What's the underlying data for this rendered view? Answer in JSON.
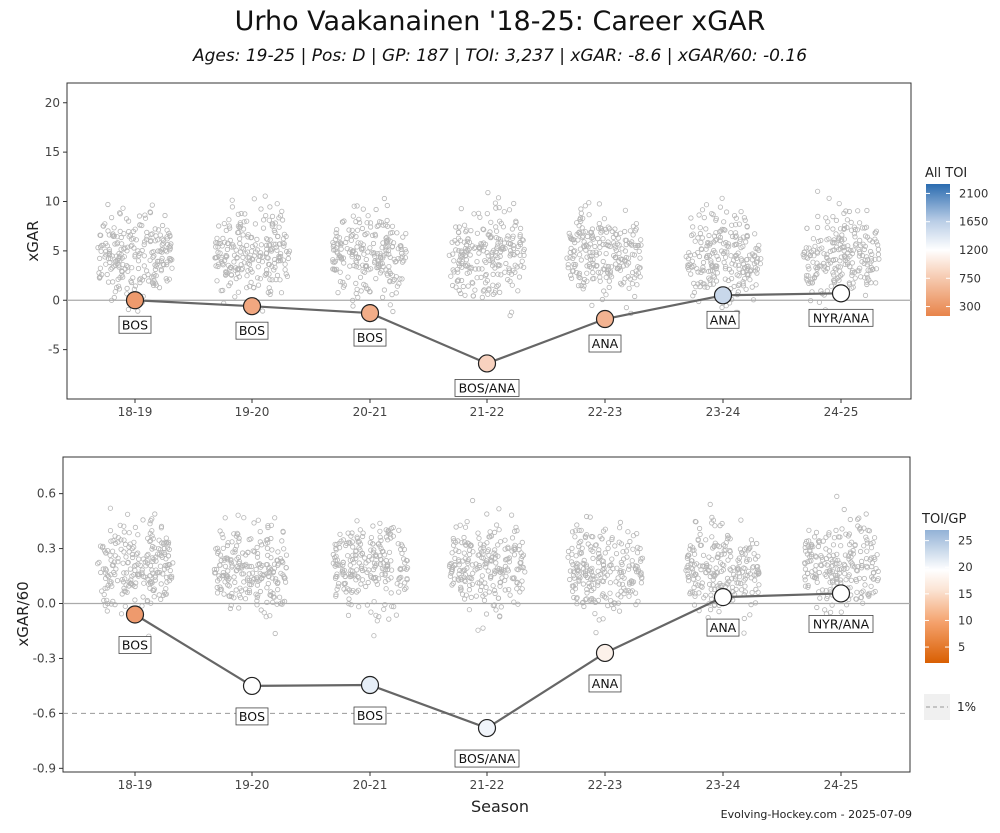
{
  "title": "Urho Vaakanainen '18-25: Career xGAR",
  "subtitle": "Ages: 19-25 | Pos: D | GP: 187 | TOI: 3,237 | xGAR: -8.6 | xGAR/60: -0.16",
  "caption": "Evolving-Hockey.com - 2025-07-09",
  "chart_data": [
    {
      "type": "line",
      "x": [
        "18-19",
        "19-20",
        "20-21",
        "21-22",
        "22-23",
        "23-24",
        "24-25"
      ],
      "xlabel": "",
      "ylabel": "xGAR",
      "ylim": [
        -10,
        22
      ],
      "yticks": [
        -5,
        0,
        5,
        10,
        15,
        20
      ],
      "reference_lines": [
        0
      ],
      "series": [
        {
          "values": [
            0.0,
            -0.6,
            -1.3,
            -6.4,
            -1.9,
            0.5,
            0.7
          ],
          "teams": [
            "BOS",
            "BOS",
            "BOS",
            "BOS/ANA",
            "ANA",
            "ANA",
            "NYR/ANA"
          ],
          "point_colors": [
            "#ee9a6d",
            "#f1a780",
            "#f2ad88",
            "#f8d2bf",
            "#f3b391",
            "#c8d7ea",
            "#ffffff"
          ]
        }
      ],
      "background_points": "league distribution of xGAR per season (gray open circles)",
      "legend": {
        "title": "All TOI",
        "position": "right",
        "ticks": [
          2100,
          1650,
          1200,
          750,
          300
        ],
        "range": [
          150,
          2250
        ],
        "colors": [
          "#e8844a",
          "#ffffff",
          "#2b6cb0"
        ]
      }
    },
    {
      "type": "line",
      "x": [
        "18-19",
        "19-20",
        "20-21",
        "21-22",
        "22-23",
        "23-24",
        "24-25"
      ],
      "xlabel": "Season",
      "ylabel": "xGAR/60",
      "ylim": [
        -0.92,
        0.8
      ],
      "yticks": [
        -0.9,
        -0.6,
        -0.3,
        0.0,
        0.3,
        0.6
      ],
      "ytick_labels": [
        "-0.9",
        "-0.6",
        "-0.3",
        "0.0",
        "0.3",
        "0.6"
      ],
      "reference_lines": [
        0
      ],
      "threshold_line": -0.6,
      "series": [
        {
          "values": [
            -0.06,
            -0.45,
            -0.445,
            -0.68,
            -0.27,
            0.035,
            0.055
          ],
          "teams": [
            "BOS",
            "BOS",
            "BOS",
            "BOS/ANA",
            "ANA",
            "ANA",
            "NYR/ANA"
          ],
          "point_colors": [
            "#ee9a6d",
            "#ffffff",
            "#e6eef7",
            "#f0f4fa",
            "#fcf1ea",
            "#ffffff",
            "#ffffff"
          ]
        }
      ],
      "background_points": "league distribution of xGAR/60 per season (gray open circles)",
      "legend": {
        "title": "TOI/GP",
        "position": "right",
        "ticks": [
          25,
          20,
          15,
          10,
          5
        ],
        "range": [
          2,
          27
        ],
        "colors": [
          "#d95f02",
          "#ffffff",
          "#93b2d6"
        ],
        "extra_entry": "1%"
      }
    }
  ]
}
